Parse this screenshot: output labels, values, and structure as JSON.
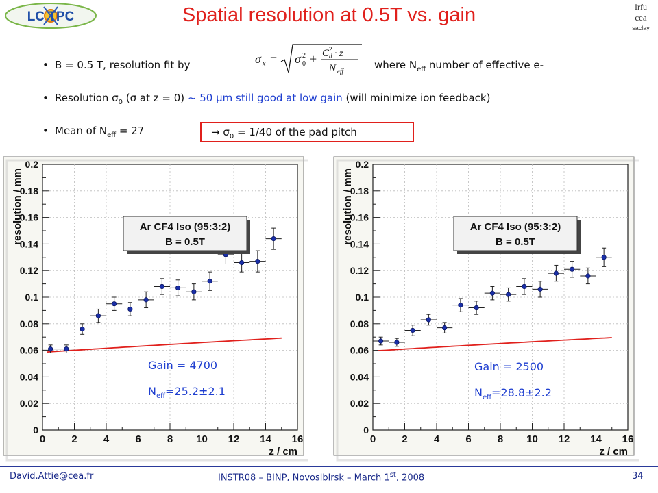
{
  "slide": {
    "title": "Spatial resolution at 0.5T vs. gain",
    "logo_left_text": "LC TPC",
    "logo_right_lines": [
      "Irfu",
      "cea",
      "saclay"
    ]
  },
  "bullets": {
    "b1_pre": "B = 0.5 T, resolution fit by",
    "b1_post_a": "where N",
    "b1_post_sub": "eff",
    "b1_post_b": " number of effective e-",
    "b2_a": "Resolution σ",
    "b2_sub": "0",
    "b2_b": " (σ at z = 0) ",
    "b2_blue": "~ 50 μm still good at low gain",
    "b2_c": " (will minimize ion feedback)",
    "b3_a": "Mean of N",
    "b3_sub": "eff",
    "b3_b": " = 27",
    "box_a": "→ σ",
    "box_sub": "0",
    "box_b": " = 1/40 of the pad pitch"
  },
  "formula": {
    "lhs": "σ",
    "lhs_sub": "x",
    "eq": "=",
    "s0": "σ",
    "s0_sub": "0",
    "s0_sup": "2",
    "plus": "+",
    "num_c": "C",
    "num_sup": "2",
    "num_sub": "d",
    "num_rest": "· z",
    "den": "N",
    "den_sub": "eff"
  },
  "chart_data": [
    {
      "type": "scatter",
      "xlabel": "z / cm",
      "ylabel": "resolution / mm",
      "xlim": [
        0,
        16
      ],
      "ylim": [
        0,
        0.2
      ],
      "xticks": [
        0,
        2,
        4,
        6,
        8,
        10,
        12,
        14,
        16
      ],
      "yticks": [
        0,
        0.02,
        0.04,
        0.06,
        0.08,
        0.1,
        0.12,
        0.14,
        0.16,
        0.18,
        0.2
      ],
      "ytick_labels": [
        "0",
        "0.02",
        "0.04",
        "0.06",
        "0.08",
        "0.1",
        "0.12",
        "0.14",
        "0.16",
        "0.18",
        "0.2"
      ],
      "legend_line1": "Ar CF4 Iso (95:3:2)",
      "legend_line2": "B = 0.5T",
      "annotation_gain": "Gain = 4700",
      "annotation_neff_a": "N",
      "annotation_neff_sub": "eff",
      "annotation_neff_b": "=25.2±2.1",
      "points": [
        {
          "x": 0.5,
          "y": 0.061,
          "ey": 0.003
        },
        {
          "x": 1.5,
          "y": 0.061,
          "ey": 0.003
        },
        {
          "x": 2.5,
          "y": 0.076,
          "ey": 0.004
        },
        {
          "x": 3.5,
          "y": 0.086,
          "ey": 0.005
        },
        {
          "x": 4.5,
          "y": 0.095,
          "ey": 0.005
        },
        {
          "x": 5.5,
          "y": 0.091,
          "ey": 0.005
        },
        {
          "x": 6.5,
          "y": 0.098,
          "ey": 0.006
        },
        {
          "x": 7.5,
          "y": 0.108,
          "ey": 0.006
        },
        {
          "x": 8.5,
          "y": 0.107,
          "ey": 0.006
        },
        {
          "x": 9.5,
          "y": 0.104,
          "ey": 0.006
        },
        {
          "x": 10.5,
          "y": 0.112,
          "ey": 0.007
        },
        {
          "x": 11.5,
          "y": 0.132,
          "ey": 0.007
        },
        {
          "x": 12.5,
          "y": 0.126,
          "ey": 0.007
        },
        {
          "x": 13.5,
          "y": 0.127,
          "ey": 0.008
        },
        {
          "x": 14.5,
          "y": 0.144,
          "ey": 0.008
        }
      ],
      "fit": {
        "s0": 0.0585,
        "coef": 0.0302
      },
      "fit_range": [
        0.3,
        15.0
      ]
    },
    {
      "type": "scatter",
      "xlabel": "z / cm",
      "ylabel": "resolution / mm",
      "xlim": [
        0,
        16
      ],
      "ylim": [
        0,
        0.2
      ],
      "xticks": [
        0,
        2,
        4,
        6,
        8,
        10,
        12,
        14,
        16
      ],
      "yticks": [
        0,
        0.02,
        0.04,
        0.06,
        0.08,
        0.1,
        0.12,
        0.14,
        0.16,
        0.18,
        0.2
      ],
      "ytick_labels": [
        "0",
        "0.02",
        "0.04",
        "0.06",
        "0.08",
        "0.1",
        "0.12",
        "0.14",
        "0.16",
        "0.18",
        "0.2"
      ],
      "legend_line1": "Ar CF4 Iso (95:3:2)",
      "legend_line2": "B = 0.5T",
      "annotation_gain": "Gain = 2500",
      "annotation_neff_a": "N",
      "annotation_neff_sub": "eff",
      "annotation_neff_b": "=28.8±2.2",
      "points": [
        {
          "x": 0.5,
          "y": 0.067,
          "ey": 0.003
        },
        {
          "x": 1.5,
          "y": 0.066,
          "ey": 0.003
        },
        {
          "x": 2.5,
          "y": 0.075,
          "ey": 0.004
        },
        {
          "x": 3.5,
          "y": 0.083,
          "ey": 0.004
        },
        {
          "x": 4.5,
          "y": 0.077,
          "ey": 0.004
        },
        {
          "x": 5.5,
          "y": 0.094,
          "ey": 0.005
        },
        {
          "x": 6.5,
          "y": 0.092,
          "ey": 0.005
        },
        {
          "x": 7.5,
          "y": 0.103,
          "ey": 0.005
        },
        {
          "x": 8.5,
          "y": 0.102,
          "ey": 0.005
        },
        {
          "x": 9.5,
          "y": 0.108,
          "ey": 0.006
        },
        {
          "x": 10.5,
          "y": 0.106,
          "ey": 0.006
        },
        {
          "x": 11.5,
          "y": 0.118,
          "ey": 0.006
        },
        {
          "x": 12.5,
          "y": 0.121,
          "ey": 0.006
        },
        {
          "x": 13.5,
          "y": 0.116,
          "ey": 0.006
        },
        {
          "x": 14.5,
          "y": 0.13,
          "ey": 0.007
        }
      ],
      "fit": {
        "s0": 0.0595,
        "coef": 0.0295
      },
      "fit_range": [
        0.3,
        15.0
      ]
    }
  ],
  "footer": {
    "email": "David.Attie@cea.fr",
    "event_a": "INSTR08 – BINP, Novosibirsk – March 1",
    "event_sup": "st",
    "event_b": ", 2008",
    "page": "34"
  }
}
